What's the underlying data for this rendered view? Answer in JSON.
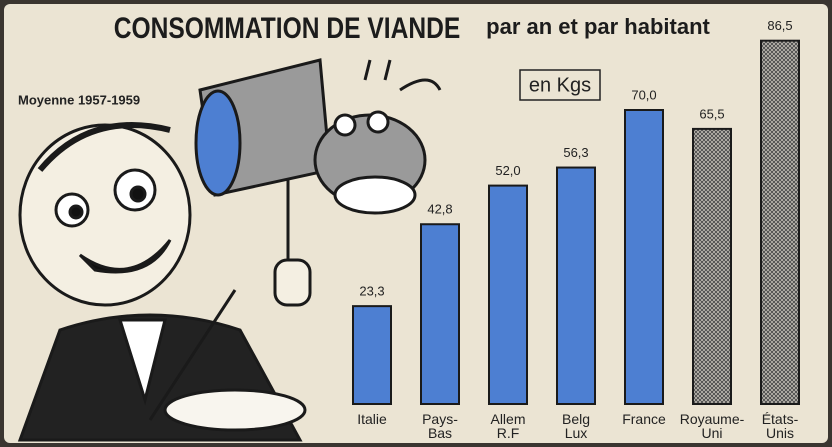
{
  "chart_data": {
    "type": "bar",
    "title": "CONSOMMATION DE VIANDE",
    "title_suffix": "par an et par habitant",
    "unit": "en Kgs",
    "subtitle": "Moyenne 1957-1959",
    "categories": [
      "Italie",
      "Pays-\nBas",
      "Allem\nR.F",
      "Belg\nLux",
      "France",
      "Royaume-\nUni",
      "États-\nUnis"
    ],
    "values": [
      23.3,
      42.8,
      52.0,
      56.3,
      70.0,
      65.5,
      86.5
    ],
    "value_labels": [
      "23,3",
      "42,8",
      "52,0",
      "56,3",
      "70,0",
      "65,5",
      "86,5"
    ],
    "colors": [
      "#4d7fd2",
      "#4d7fd2",
      "#4d7fd2",
      "#4d7fd2",
      "#4d7fd2",
      "#555555",
      "#555555"
    ],
    "hatched": [
      false,
      false,
      false,
      false,
      false,
      true,
      true
    ]
  }
}
